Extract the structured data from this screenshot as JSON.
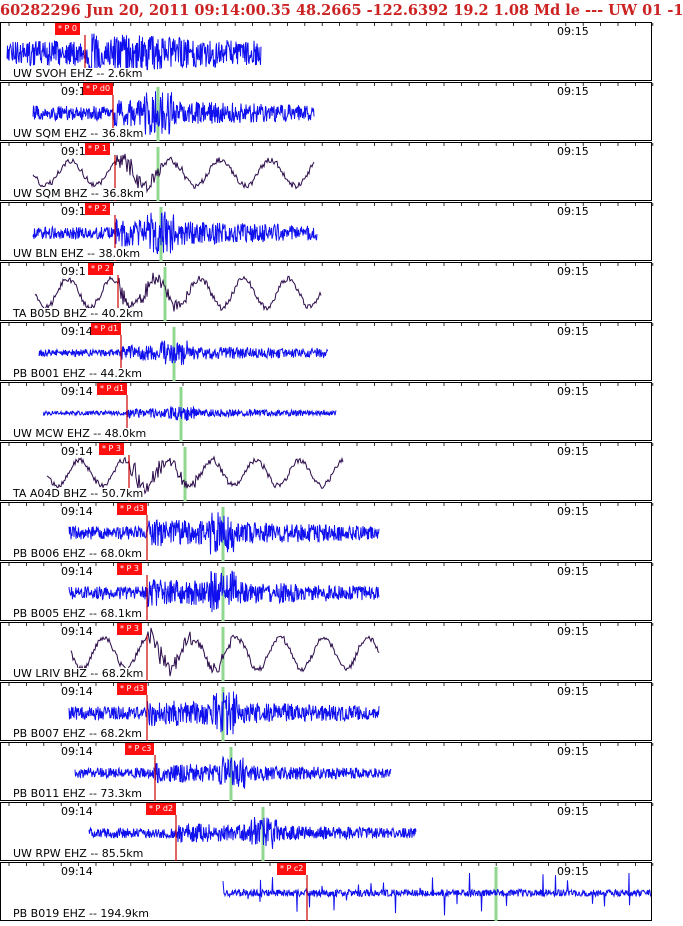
{
  "header": {
    "event_line": "60282296 Jun 20, 2011 09:14:00.35   48.2665 -122.6392 19.2 1.08 Md le ---  UW 01  -1"
  },
  "colors": {
    "header_text": "#cc2222",
    "pick_flag": "#ff1010",
    "pick_line": "#cc0000",
    "s_marker": "#90d890",
    "ehz_trace": "#1010ee",
    "bhz_trace": "#2a0a4a",
    "border": "#000000"
  },
  "chart_data": {
    "type": "line",
    "title": "60282296 Jun 20, 2011 09:14:00.35   48.2665 -122.6392 19.2 1.08 Md le ---  UW 01  -1",
    "xlabel": "",
    "ylabel": "",
    "time_ticks": [
      "09:14",
      "09:15"
    ],
    "series": [
      {
        "name": "UW SVOH EHZ -- 2.6km",
        "left_time": "",
        "right_time": "09:15",
        "pick": "P 0",
        "component": "EHZ"
      },
      {
        "name": "UW SQM EHZ -- 36.8km",
        "left_time": "09:1",
        "right_time": "09:15",
        "pick": "P d0",
        "component": "EHZ"
      },
      {
        "name": "UW SQM BHZ -- 36.8km",
        "left_time": "09:1",
        "right_time": "09:15",
        "pick": "P 1",
        "component": "BHZ"
      },
      {
        "name": "UW BLN EHZ -- 38.0km",
        "left_time": "09:1",
        "right_time": "09:15",
        "pick": "P 2",
        "component": "EHZ"
      },
      {
        "name": "TA B05D BHZ -- 40.2km",
        "left_time": "09:1",
        "right_time": "09:15",
        "pick": "P 2",
        "component": "BHZ"
      },
      {
        "name": "PB B001 EHZ -- 44.2km",
        "left_time": "09:14",
        "right_time": "09:15",
        "pick": "P d1",
        "component": "EHZ"
      },
      {
        "name": "UW MCW EHZ -- 48.0km",
        "left_time": "09:14",
        "right_time": "09:15",
        "pick": "P d1",
        "component": "EHZ"
      },
      {
        "name": "TA A04D BHZ -- 50.7km",
        "left_time": "09:14",
        "right_time": "09:15",
        "pick": "P 3",
        "component": "BHZ"
      },
      {
        "name": "PB B006 EHZ -- 68.0km",
        "left_time": "09:14",
        "right_time": "09:15",
        "pick": "P d3",
        "component": "EHZ"
      },
      {
        "name": "PB B005 EHZ -- 68.1km",
        "left_time": "09:14",
        "right_time": "09:15",
        "pick": "P 3",
        "component": "EHZ"
      },
      {
        "name": "UW LRIV BHZ -- 68.2km",
        "left_time": "09:14",
        "right_time": "09:15",
        "pick": "P 3",
        "component": "BHZ"
      },
      {
        "name": "PB B007 EHZ -- 68.2km",
        "left_time": "09:14",
        "right_time": "09:15",
        "pick": "P d3",
        "component": "EHZ"
      },
      {
        "name": "PB B011 EHZ -- 73.3km",
        "left_time": "09:14",
        "right_time": "09:15",
        "pick": "P c3",
        "component": "EHZ"
      },
      {
        "name": "UW RPW EHZ -- 85.5km",
        "left_time": "09:14",
        "right_time": "09:15",
        "pick": "P d2",
        "component": "EHZ"
      },
      {
        "name": "PB B019 EHZ -- 194.9km",
        "left_time": "09:14",
        "right_time": "09:15",
        "pick": "P c2",
        "component": "EHZ"
      }
    ]
  }
}
